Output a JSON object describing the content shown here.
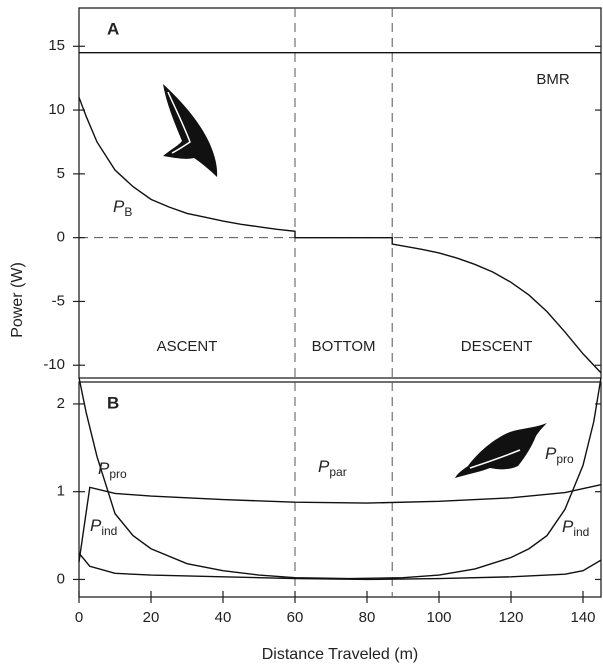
{
  "chart_data": [
    {
      "type": "line",
      "panel": "A",
      "ylabel": "Power (W)",
      "xlim": [
        0,
        145
      ],
      "ylim": [
        -11,
        18
      ],
      "yticks": [
        -10,
        -5,
        0,
        5,
        10,
        15
      ],
      "hlines": [
        0
      ],
      "vlines": [
        60,
        87
      ],
      "regions": [
        "ASCENT",
        "BOTTOM",
        "DESCENT"
      ],
      "series": [
        {
          "name": "BMR",
          "color": "#111111",
          "x": [
            0,
            145
          ],
          "values": [
            14.5,
            14.5
          ]
        },
        {
          "symbol": "P",
          "subscript": "B",
          "color": "#111111",
          "x": [
            0,
            2,
            5,
            10,
            15,
            20,
            25,
            30,
            35,
            40,
            45,
            50,
            55,
            60,
            60,
            87,
            87,
            95,
            100,
            105,
            110,
            115,
            120,
            125,
            130,
            135,
            140,
            145
          ],
          "values": [
            11,
            9.5,
            7.5,
            5.3,
            4,
            3,
            2.4,
            1.9,
            1.6,
            1.3,
            1.05,
            0.85,
            0.65,
            0.5,
            0,
            0,
            -0.5,
            -0.9,
            -1.2,
            -1.6,
            -2.1,
            -2.7,
            -3.5,
            -4.5,
            -5.8,
            -7.4,
            -9.1,
            -10.6
          ]
        }
      ]
    },
    {
      "type": "line",
      "panel": "B",
      "xlabel": "Distance Traveled (m)",
      "xlim": [
        0,
        145
      ],
      "ylim": [
        -0.2,
        2.25
      ],
      "yticks": [
        0,
        1,
        2
      ],
      "xticks": [
        0,
        20,
        40,
        60,
        80,
        100,
        120,
        140
      ],
      "vlines": [
        60,
        87
      ],
      "series": [
        {
          "symbol": "P",
          "subscript": "pro",
          "color": "#111111",
          "x": [
            0,
            2,
            5,
            10,
            15,
            20,
            30,
            40,
            50,
            60,
            75,
            90,
            100,
            110,
            120,
            125,
            130,
            135,
            140,
            143,
            145
          ],
          "values": [
            2.3,
            1.9,
            1.4,
            0.75,
            0.5,
            0.35,
            0.18,
            0.1,
            0.05,
            0.02,
            0.01,
            0.02,
            0.05,
            0.12,
            0.25,
            0.35,
            0.5,
            0.8,
            1.3,
            1.8,
            2.3
          ]
        },
        {
          "symbol": "P",
          "subscript": "par",
          "color": "#111111",
          "x": [
            0,
            3,
            10,
            20,
            40,
            60,
            80,
            100,
            120,
            135,
            145
          ],
          "values": [
            0.2,
            1.05,
            0.98,
            0.95,
            0.91,
            0.88,
            0.87,
            0.89,
            0.93,
            0.99,
            1.08
          ]
        },
        {
          "symbol": "P",
          "subscript": "ind",
          "color": "#111111",
          "x": [
            0,
            3,
            10,
            20,
            40,
            60,
            80,
            100,
            120,
            135,
            140,
            145
          ],
          "values": [
            0.3,
            0.15,
            0.07,
            0.05,
            0.03,
            0.01,
            0,
            0.01,
            0.03,
            0.06,
            0.1,
            0.22
          ]
        }
      ]
    }
  ]
}
